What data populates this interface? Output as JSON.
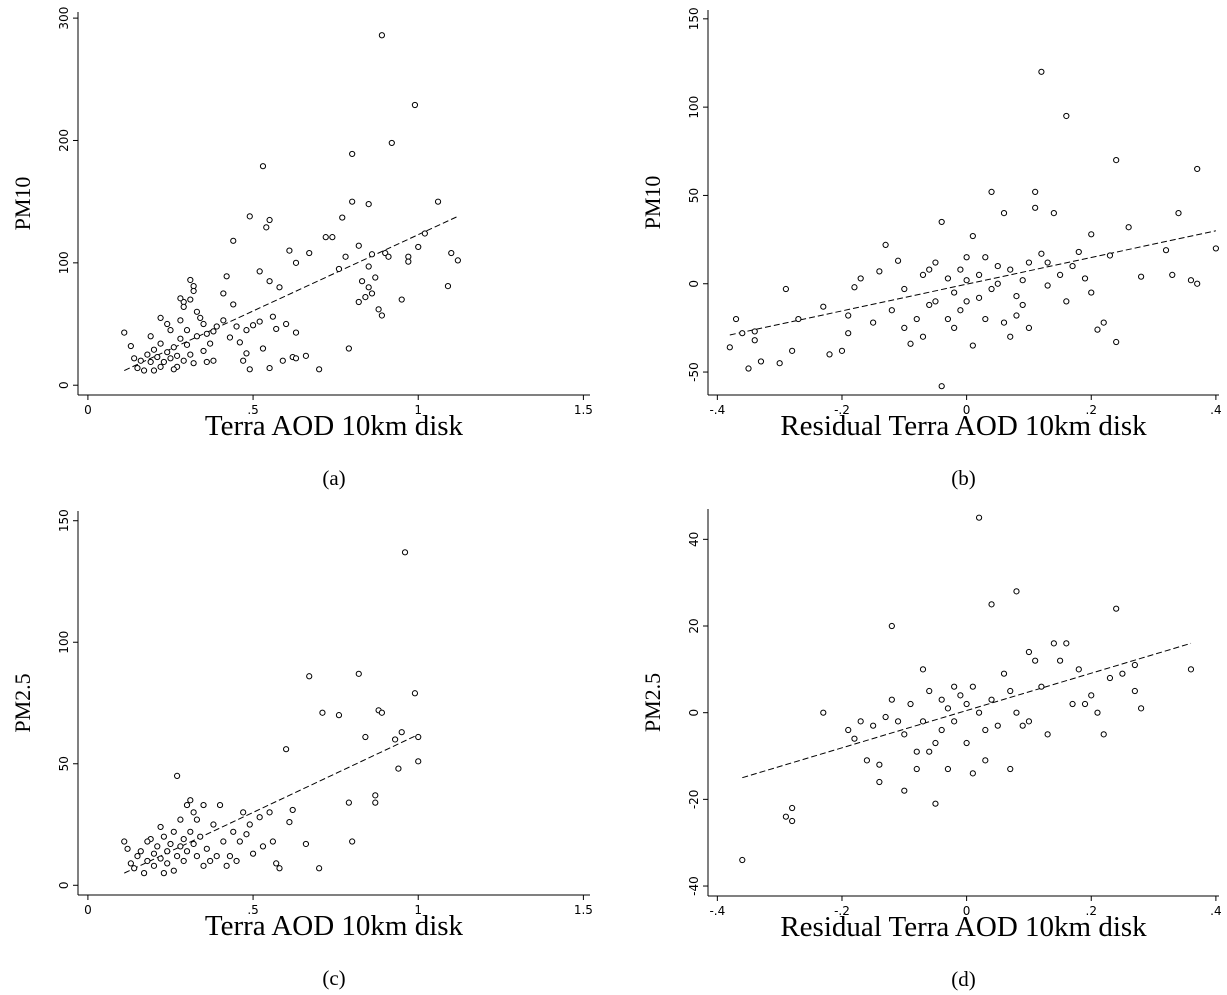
{
  "chart_data": [
    {
      "type": "scatter",
      "caption": "(a)",
      "x_label": "Terra AOD 10km disk",
      "y_label": "PM10",
      "xlim": [
        -0.03,
        1.52
      ],
      "ylim": [
        -8,
        305
      ],
      "xticks": [
        0,
        {
          "value": 0.5,
          "label": ".5"
        },
        1,
        1.5
      ],
      "yticks": [
        0,
        100,
        200,
        300
      ],
      "x": [
        0.89,
        0.99,
        0.92,
        0.8,
        0.53,
        1.06,
        0.8,
        0.85,
        0.49,
        0.77,
        0.55,
        0.54,
        0.44,
        0.72,
        0.74,
        1.1,
        0.82,
        0.67,
        0.61,
        0.63,
        0.9,
        0.97,
        1.02,
        1.12,
        1.09,
        0.85,
        0.87,
        0.91,
        0.95,
        0.88,
        0.89,
        0.79,
        0.7,
        0.66,
        0.56,
        0.52,
        0.55,
        0.58,
        0.42,
        0.41,
        0.35,
        0.45,
        0.48,
        0.5,
        0.52,
        0.44,
        0.41,
        0.43,
        0.48,
        0.49,
        0.55,
        0.6,
        0.62,
        0.63,
        0.32,
        0.32,
        0.31,
        0.29,
        0.28,
        0.31,
        0.29,
        0.11,
        0.13,
        0.14,
        0.15,
        0.17,
        0.18,
        0.19,
        0.2,
        0.21,
        0.22,
        0.22,
        0.23,
        0.24,
        0.25,
        0.25,
        0.26,
        0.27,
        0.27,
        0.28,
        0.29,
        0.3,
        0.3,
        0.31,
        0.32,
        0.33,
        0.34,
        0.35,
        0.36,
        0.37,
        0.38,
        0.22,
        0.24,
        0.19,
        0.16,
        0.2,
        0.26,
        0.28,
        0.33,
        0.36,
        0.38,
        0.39,
        0.46,
        0.47,
        0.53,
        0.57,
        0.59,
        0.63,
        0.82,
        0.84,
        0.85,
        0.86,
        0.97,
        1.0,
        0.86,
        0.76,
        0.78,
        0.83
      ],
      "values": [
        286,
        229,
        198,
        189,
        179,
        150,
        150,
        148,
        138,
        137,
        135,
        129,
        118,
        121,
        121,
        108,
        114,
        108,
        110,
        100,
        108,
        105,
        124,
        102,
        81,
        97,
        88,
        105,
        70,
        62,
        57,
        30,
        13,
        24,
        56,
        93,
        85,
        80,
        89,
        75,
        50,
        48,
        45,
        49,
        52,
        66,
        53,
        39,
        26,
        13,
        14,
        50,
        23,
        43,
        81,
        77,
        70,
        68,
        71,
        86,
        64,
        43,
        32,
        22,
        14,
        12,
        25,
        19,
        29,
        23,
        34,
        15,
        19,
        27,
        22,
        45,
        31,
        24,
        15,
        38,
        20,
        45,
        33,
        25,
        18,
        40,
        55,
        28,
        19,
        34,
        44,
        55,
        50,
        40,
        20,
        12,
        13,
        53,
        60,
        42,
        20,
        48,
        35,
        20,
        30,
        46,
        20,
        22,
        68,
        72,
        80,
        75,
        101,
        113,
        107,
        95,
        105,
        85
      ],
      "fit": {
        "x": [
          0.11,
          1.12
        ],
        "values": [
          12,
          138
        ]
      }
    },
    {
      "type": "scatter",
      "caption": "(b)",
      "x_label": "Residual Terra AOD 10km disk",
      "y_label": "PM10",
      "xlim": [
        -0.415,
        0.405
      ],
      "ylim": [
        -63,
        155
      ],
      "xticks": [
        {
          "value": -0.4,
          "label": "-.4"
        },
        {
          "value": -0.2,
          "label": "-.2"
        },
        0,
        {
          "value": 0.2,
          "label": ".2"
        },
        {
          "value": 0.4,
          "label": ".4"
        }
      ],
      "yticks": [
        -50,
        0,
        50,
        100,
        150
      ],
      "x": [
        -0.38,
        -0.37,
        -0.36,
        -0.35,
        -0.34,
        -0.34,
        -0.33,
        -0.3,
        -0.29,
        -0.28,
        -0.27,
        -0.23,
        -0.22,
        -0.2,
        -0.19,
        -0.19,
        -0.18,
        -0.17,
        -0.15,
        -0.14,
        -0.13,
        -0.12,
        -0.11,
        -0.1,
        -0.09,
        -0.08,
        -0.07,
        -0.07,
        -0.06,
        -0.05,
        -0.05,
        -0.04,
        -0.04,
        -0.03,
        -0.03,
        -0.02,
        -0.01,
        -0.01,
        0.0,
        0.0,
        0.01,
        0.01,
        0.02,
        0.02,
        0.03,
        0.03,
        0.04,
        0.04,
        0.05,
        0.05,
        0.06,
        0.06,
        0.07,
        0.08,
        0.08,
        0.09,
        0.1,
        0.1,
        0.11,
        0.11,
        0.12,
        0.12,
        0.13,
        0.13,
        0.14,
        0.15,
        0.16,
        0.16,
        0.17,
        0.18,
        0.19,
        0.2,
        0.21,
        0.22,
        0.23,
        0.24,
        0.24,
        0.26,
        0.28,
        0.32,
        0.33,
        0.34,
        0.36,
        0.37,
        0.37,
        0.4,
        -0.02,
        0.0,
        -0.06,
        0.07,
        0.09,
        -0.1,
        0.2
      ],
      "values": [
        -36,
        -20,
        -28,
        -48,
        -32,
        -27,
        -44,
        -45,
        -3,
        -38,
        -20,
        -13,
        -40,
        -38,
        -18,
        -28,
        -2,
        3,
        -22,
        7,
        22,
        -15,
        13,
        -3,
        -34,
        -20,
        -30,
        5,
        8,
        -10,
        12,
        -58,
        35,
        -20,
        3,
        -5,
        8,
        -15,
        2,
        -10,
        -35,
        27,
        5,
        -8,
        -20,
        15,
        52,
        -3,
        0,
        10,
        -22,
        40,
        8,
        -18,
        -7,
        2,
        -25,
        12,
        52,
        43,
        17,
        120,
        12,
        -1,
        40,
        5,
        95,
        -10,
        10,
        18,
        3,
        -5,
        -26,
        -22,
        16,
        -33,
        70,
        32,
        4,
        19,
        5,
        40,
        2,
        0,
        65,
        20,
        -25,
        15,
        -12,
        -30,
        -12,
        -25,
        28
      ],
      "fit": {
        "x": [
          -0.38,
          0.4
        ],
        "values": [
          -29,
          30
        ]
      }
    },
    {
      "type": "scatter",
      "caption": "(c)",
      "x_label": "Terra AOD 10km disk",
      "y_label": "PM2.5",
      "xlim": [
        -0.03,
        1.52
      ],
      "ylim": [
        -4,
        154
      ],
      "xticks": [
        0,
        {
          "value": 0.5,
          "label": ".5"
        },
        1,
        1.5
      ],
      "yticks": [
        0,
        50,
        100,
        150
      ],
      "x": [
        0.11,
        0.12,
        0.13,
        0.14,
        0.15,
        0.16,
        0.17,
        0.18,
        0.19,
        0.2,
        0.2,
        0.21,
        0.22,
        0.22,
        0.23,
        0.24,
        0.24,
        0.25,
        0.26,
        0.26,
        0.27,
        0.27,
        0.28,
        0.28,
        0.29,
        0.29,
        0.3,
        0.3,
        0.31,
        0.31,
        0.32,
        0.32,
        0.33,
        0.33,
        0.34,
        0.35,
        0.36,
        0.37,
        0.38,
        0.39,
        0.4,
        0.41,
        0.42,
        0.43,
        0.44,
        0.46,
        0.47,
        0.48,
        0.49,
        0.5,
        0.52,
        0.53,
        0.55,
        0.56,
        0.57,
        0.58,
        0.6,
        0.61,
        0.62,
        0.66,
        0.67,
        0.7,
        0.71,
        0.76,
        0.79,
        0.8,
        0.82,
        0.84,
        0.87,
        0.87,
        0.88,
        0.89,
        0.93,
        0.94,
        0.95,
        0.96,
        0.99,
        1.0,
        1.0,
        0.45,
        0.35,
        0.23,
        0.18
      ],
      "values": [
        18,
        15,
        9,
        7,
        12,
        14,
        5,
        10,
        19,
        8,
        13,
        16,
        11,
        24,
        20,
        9,
        14,
        17,
        6,
        22,
        45,
        12,
        16,
        27,
        19,
        10,
        33,
        14,
        35,
        22,
        17,
        30,
        12,
        27,
        20,
        33,
        15,
        10,
        25,
        12,
        33,
        18,
        8,
        12,
        22,
        18,
        30,
        21,
        25,
        13,
        28,
        16,
        30,
        18,
        9,
        7,
        56,
        26,
        31,
        17,
        86,
        7,
        71,
        70,
        34,
        18,
        87,
        61,
        34,
        37,
        72,
        71,
        60,
        48,
        63,
        137,
        79,
        51,
        61,
        10,
        8,
        5,
        18
      ],
      "fit": {
        "x": [
          0.11,
          1.0
        ],
        "values": [
          5,
          62
        ]
      }
    },
    {
      "type": "scatter",
      "caption": "(d)",
      "x_label": "Residual Terra AOD 10km disk",
      "y_label": "PM2.5",
      "xlim": [
        -0.415,
        0.405
      ],
      "ylim": [
        -42.3,
        47
      ],
      "xticks": [
        {
          "value": -0.4,
          "label": "-.4"
        },
        {
          "value": -0.2,
          "label": "-.2"
        },
        0,
        {
          "value": 0.2,
          "label": ".2"
        },
        {
          "value": 0.4,
          "label": ".4"
        }
      ],
      "yticks": [
        -40,
        -20,
        0,
        20,
        40
      ],
      "x": [
        -0.36,
        -0.29,
        -0.28,
        -0.28,
        -0.23,
        -0.19,
        -0.18,
        -0.17,
        -0.16,
        -0.15,
        -0.14,
        -0.14,
        -0.13,
        -0.12,
        -0.12,
        -0.11,
        -0.1,
        -0.1,
        -0.09,
        -0.08,
        -0.08,
        -0.07,
        -0.07,
        -0.06,
        -0.05,
        -0.05,
        -0.04,
        -0.04,
        -0.03,
        -0.03,
        -0.02,
        -0.02,
        -0.01,
        0.0,
        0.0,
        0.01,
        0.01,
        0.02,
        0.02,
        0.03,
        0.04,
        0.04,
        0.05,
        0.06,
        0.07,
        0.07,
        0.08,
        0.08,
        0.09,
        0.1,
        0.11,
        0.12,
        0.13,
        0.14,
        0.15,
        0.16,
        0.17,
        0.18,
        0.19,
        0.2,
        0.21,
        0.22,
        0.23,
        0.24,
        0.25,
        0.27,
        0.27,
        0.28,
        0.36,
        -0.06,
        0.03,
        0.1
      ],
      "values": [
        -34,
        -24,
        -25,
        -22,
        0,
        -4,
        -6,
        -2,
        -11,
        -3,
        -12,
        -16,
        -1,
        20,
        3,
        -2,
        -18,
        -5,
        2,
        -9,
        -13,
        -2,
        10,
        5,
        -21,
        -7,
        3,
        -4,
        1,
        -13,
        6,
        -2,
        4,
        -7,
        2,
        -14,
        6,
        45,
        0,
        -4,
        25,
        3,
        -3,
        9,
        -13,
        5,
        28,
        0,
        -3,
        14,
        12,
        6,
        -5,
        16,
        12,
        16,
        2,
        10,
        2,
        4,
        0,
        -5,
        8,
        24,
        9,
        11,
        5,
        1,
        10,
        -9,
        -11,
        -2
      ],
      "fit": {
        "x": [
          -0.36,
          0.36
        ],
        "values": [
          -15,
          16
        ]
      }
    }
  ]
}
